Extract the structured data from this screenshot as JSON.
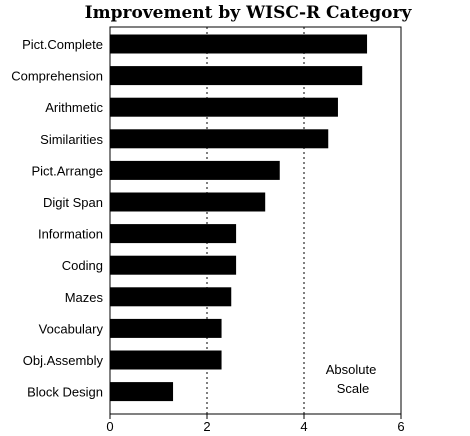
{
  "chart_data": {
    "type": "bar",
    "orientation": "horizontal",
    "title": "Improvement by WISC-R Category",
    "categories": [
      "Pict.Complete",
      "Comprehension",
      "Arithmetic",
      "Similarities",
      "Pict.Arrange",
      "Digit Span",
      "Information",
      "Coding",
      "Mazes",
      "Vocabulary",
      "Obj.Assembly",
      "Block Design"
    ],
    "values": [
      5.3,
      5.2,
      4.7,
      4.5,
      3.5,
      3.2,
      2.6,
      2.6,
      2.5,
      2.3,
      2.3,
      1.3
    ],
    "xlim": [
      0,
      6
    ],
    "xticks": [
      "0",
      "2",
      "4",
      "6"
    ],
    "xlabel": "",
    "ylabel": "",
    "gridlines_at": [
      2,
      4
    ],
    "grid": "dashed vertical",
    "bar_color": "#000000",
    "annotation": [
      "Absolute",
      "Scale"
    ],
    "annotation_placement": "bottom-right"
  }
}
